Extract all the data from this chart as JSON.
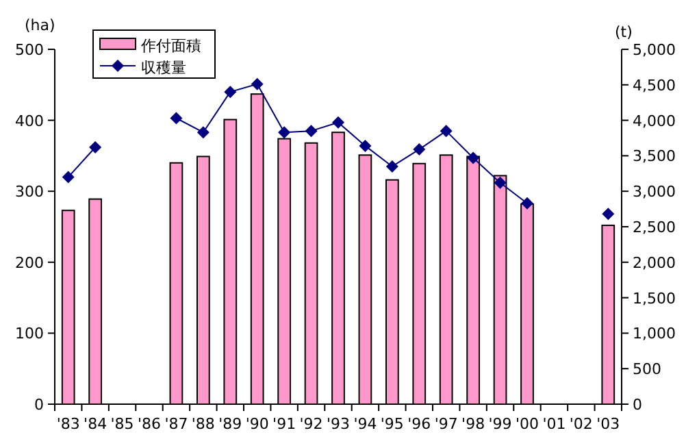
{
  "chart_data": {
    "type": "bar",
    "ylabel": "(ha)",
    "y2label": "(t)",
    "categories": [
      "'83",
      "'84",
      "'85",
      "'86",
      "'87",
      "'88",
      "'89",
      "'90",
      "'91",
      "'92",
      "'93",
      "'94",
      "'95",
      "'96",
      "'97",
      "'98",
      "'99",
      "'00",
      "'01",
      "'02",
      "'03"
    ],
    "series": [
      {
        "name": "作付面積",
        "color": "#ff99cc",
        "values": [
          273,
          289,
          null,
          null,
          340,
          349,
          401,
          437,
          374,
          368,
          383,
          351,
          316,
          339,
          351,
          349,
          322,
          282,
          null,
          null,
          252
        ]
      },
      {
        "name": "収穫量",
        "type": "line",
        "axis": "y2",
        "color": "#000080",
        "marker": "diamond",
        "values": [
          3200,
          3620,
          null,
          null,
          4030,
          3830,
          4400,
          4510,
          3830,
          3850,
          3970,
          3640,
          3350,
          3590,
          3850,
          3470,
          3120,
          2830,
          null,
          null,
          2680
        ]
      }
    ],
    "ylim": [
      0,
      500
    ],
    "yticks": [
      0,
      100,
      200,
      300,
      400,
      500
    ],
    "y2lim": [
      0,
      5000
    ],
    "y2ticks": [
      0,
      {
        "value": 500,
        "label": "500"
      },
      {
        "value": 1000,
        "label": "1,000"
      },
      {
        "value": 1500,
        "label": "1,500"
      },
      {
        "value": 2000,
        "label": "2,000"
      },
      {
        "value": 2500,
        "label": "2,500"
      },
      {
        "value": 3000,
        "label": "3,000"
      },
      {
        "value": 3500,
        "label": "3,500"
      },
      {
        "value": 4000,
        "label": "4,000"
      },
      {
        "value": 4500,
        "label": "4,500"
      },
      {
        "value": 5000,
        "label": "5,000"
      }
    ],
    "grid": false,
    "legend": "top left"
  }
}
